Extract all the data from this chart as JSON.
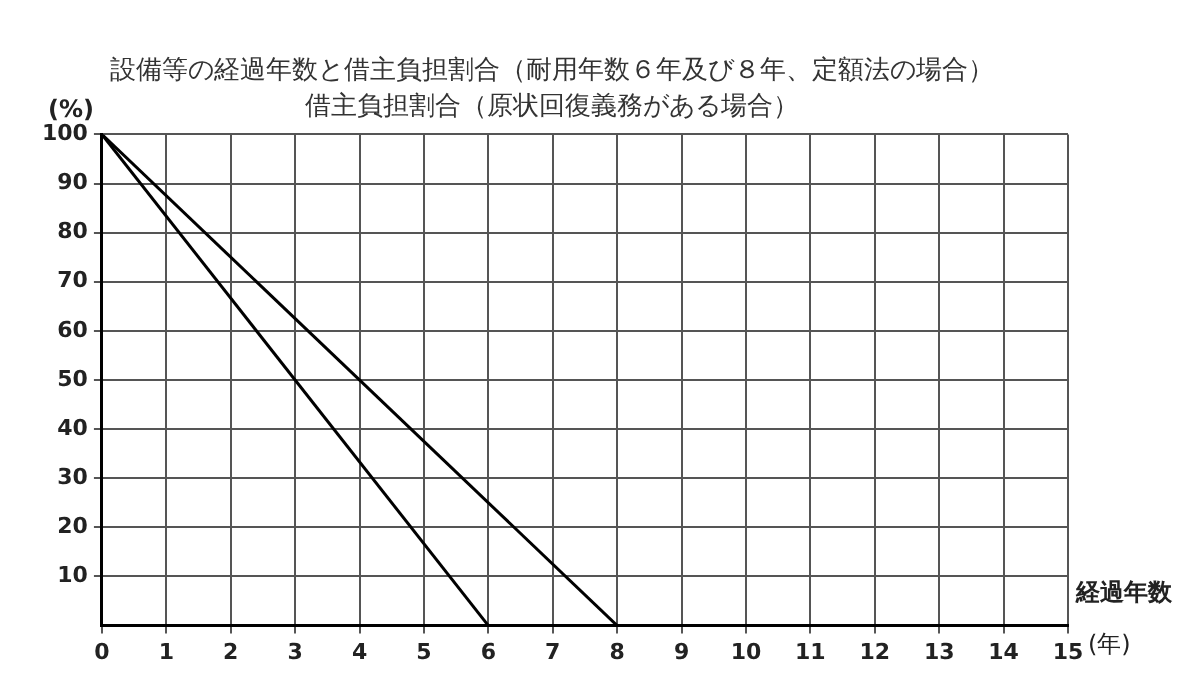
{
  "chart_data": {
    "type": "line",
    "title": "設備等の経過年数と借主負担割合（耐用年数６年及び８年、定額法の場合）",
    "subtitle": "借主負担割合（原状回復義務がある場合）",
    "ylabel": "(%)",
    "xlabel": "経過年数",
    "annotations": [
      "(年)"
    ],
    "series": [
      {
        "color": "#000000",
        "x": [
          0,
          6
        ],
        "values": [
          100,
          0
        ]
      },
      {
        "color": "#000000",
        "x": [
          0,
          8
        ],
        "values": [
          100,
          0
        ]
      }
    ],
    "xlim": [
      0,
      15
    ],
    "xticks": [
      0,
      1,
      2,
      3,
      4,
      5,
      6,
      7,
      8,
      9,
      10,
      11,
      12,
      13,
      14,
      15
    ],
    "ylim": [
      0,
      100
    ],
    "yticks": [
      10,
      20,
      30,
      40,
      50,
      60,
      70,
      80,
      90,
      100
    ],
    "grid": true,
    "legend": false,
    "marker": "none",
    "line_style": "solid"
  }
}
